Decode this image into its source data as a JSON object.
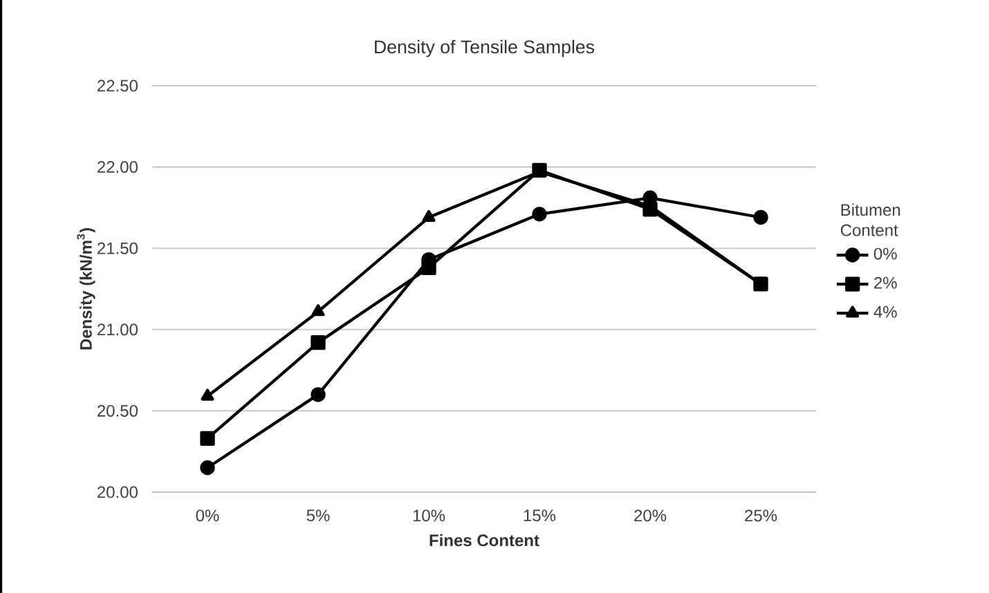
{
  "chart_data": {
    "type": "line",
    "title": "Density of Tensile Samples",
    "xlabel": "Fines Content",
    "ylabel": "Density (kN/m$^{3}$)",
    "legend_title": "Bitumen Content",
    "categories": [
      "0%",
      "5%",
      "10%",
      "15%",
      "20%",
      "25%"
    ],
    "series": [
      {
        "name": "0%",
        "color": "#000000",
        "marker": "circle",
        "values": [
          20.15,
          20.6,
          21.43,
          21.71,
          21.81,
          21.69
        ]
      },
      {
        "name": "2%",
        "color": "#000000",
        "marker": "square",
        "values": [
          20.33,
          20.92,
          21.38,
          21.98,
          21.74,
          21.28
        ]
      },
      {
        "name": "4%",
        "color": "#000000",
        "marker": "triangle",
        "values": [
          20.59,
          21.11,
          21.69,
          21.97,
          21.76,
          21.28
        ]
      }
    ],
    "ylim": [
      20.0,
      22.5
    ],
    "yticks": [
      {
        "value": 20.0,
        "label": "20.00"
      },
      {
        "value": 20.5,
        "label": "20.50"
      },
      {
        "value": 21.0,
        "label": "21.00"
      },
      {
        "value": 21.5,
        "label": "21.50"
      },
      {
        "value": 22.0,
        "label": "22.00"
      },
      {
        "value": 22.5,
        "label": "22.50"
      }
    ],
    "grid": "y",
    "legend": "right",
    "line_style": "solid"
  }
}
